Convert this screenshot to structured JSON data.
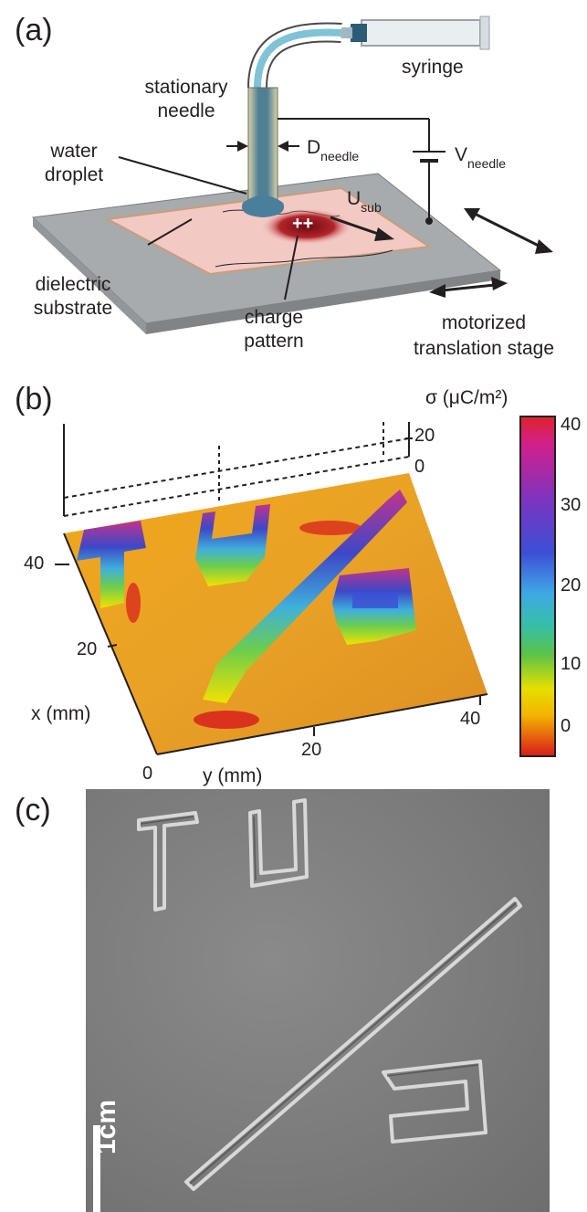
{
  "panel_a": {
    "letter": "(a)",
    "syringe": "syringe",
    "stationary_needle_1": "stationary",
    "stationary_needle_2": "needle",
    "water_droplet_1": "water",
    "water_droplet_2": "droplet",
    "d_needle_main": "D",
    "d_needle_sub": "needle",
    "v_needle_main": "V",
    "v_needle_sub": "needle",
    "u_sub_main": "U",
    "u_sub_sub": "sub",
    "charge_marks": "++",
    "dielectric_1": "dielectric",
    "dielectric_2": "substrate",
    "charge_pattern_1": "charge",
    "charge_pattern_2": "pattern",
    "stage_1": "motorized",
    "stage_2": "translation stage"
  },
  "panel_b": {
    "letter": "(b)",
    "colorbar_title": "σ (μC/m²)",
    "colorbar_ticks": [
      "40",
      "30",
      "20",
      "10",
      "0"
    ],
    "z_ticks": [
      "20",
      "0"
    ],
    "x_axis_label": "x (mm)",
    "x_ticks": [
      "40",
      "20",
      "0"
    ],
    "y_axis_label": "y (mm)",
    "y_ticks": [
      "20",
      "40"
    ]
  },
  "panel_c": {
    "letter": "(c)",
    "scale_bar": "1cm"
  },
  "chart_data": {
    "type": "heatmap",
    "title": "",
    "zlabel": "σ (μC/m²)",
    "xlabel": "x (mm)",
    "ylabel": "y (mm)",
    "xlim": [
      0,
      45
    ],
    "ylim": [
      0,
      45
    ],
    "zlim": [
      0,
      40
    ],
    "colorbar_range": [
      -5,
      40
    ],
    "surface_features": [
      "T",
      "U",
      "/",
      "e"
    ],
    "colors": {
      "low": "#d7191c",
      "mid": "#f5d200",
      "high": "#d61f75"
    }
  }
}
